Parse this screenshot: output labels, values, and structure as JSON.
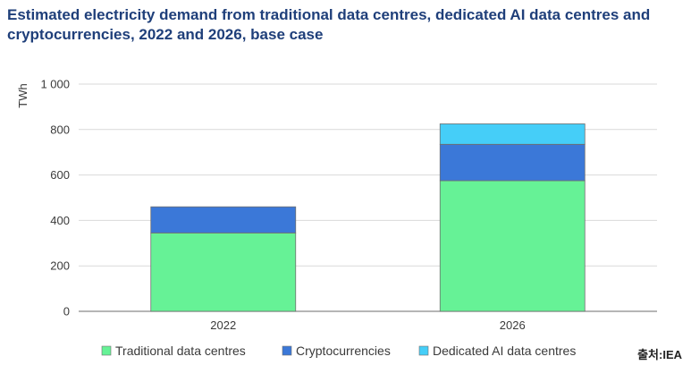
{
  "chart_data": {
    "type": "bar",
    "stacked": true,
    "title": "Estimated electricity demand from traditional data centres, dedicated AI data centres and cryptocurrencies, 2022 and 2026, base case",
    "ylabel": "TWh",
    "xlabel": "",
    "ylim": [
      0,
      1000
    ],
    "yticks": [
      0,
      200,
      400,
      600,
      800,
      1000
    ],
    "ytick_labels": [
      "0",
      "200",
      "400",
      "600",
      "800",
      "1 000"
    ],
    "categories": [
      "2022",
      "2026"
    ],
    "series": [
      {
        "name": "Traditional data centres",
        "values": [
          345,
          575
        ],
        "color": "#66f296"
      },
      {
        "name": "Cryptocurrencies",
        "values": [
          115,
          160
        ],
        "color": "#3b78d8"
      },
      {
        "name": "Dedicated AI data centres",
        "values": [
          0,
          90
        ],
        "color": "#45cef8"
      }
    ],
    "grid": true,
    "legend_position": "bottom"
  },
  "source": "출처:IEA"
}
